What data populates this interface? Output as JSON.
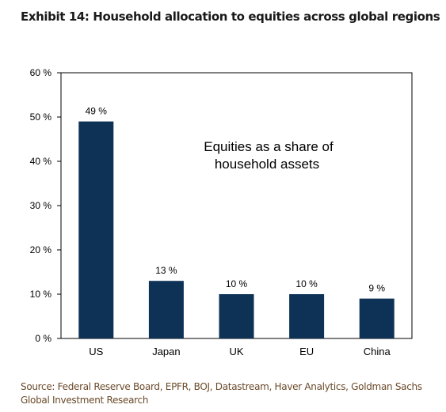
{
  "exhibit_title": "Exhibit 14: Household allocation to equities across global regions",
  "source_note": "Source: Federal Reserve Board, EPFR, BOJ, Datastream, Haver Analytics, Goldman Sachs Global Investment Research",
  "chart_data": {
    "type": "bar",
    "categories": [
      "US",
      "Japan",
      "UK",
      "EU",
      "China"
    ],
    "values": [
      49,
      13,
      10,
      10,
      9
    ],
    "data_labels": [
      "49 %",
      "13 %",
      "10 %",
      "10 %",
      "9 %"
    ],
    "annotation": "Equities as a share of household assets",
    "annotation_lines": [
      "Equities as a share of",
      "household assets"
    ],
    "ylim": [
      0,
      60
    ],
    "y_ticks": [
      0,
      10,
      20,
      30,
      40,
      50,
      60
    ],
    "y_tick_labels": [
      "0 %",
      "10 %",
      "20 %",
      "30 %",
      "40 %",
      "50 %",
      "60 %"
    ],
    "xlabel": "",
    "ylabel": "",
    "grid": false,
    "legend": "none",
    "bar_color": "#0d3256"
  }
}
